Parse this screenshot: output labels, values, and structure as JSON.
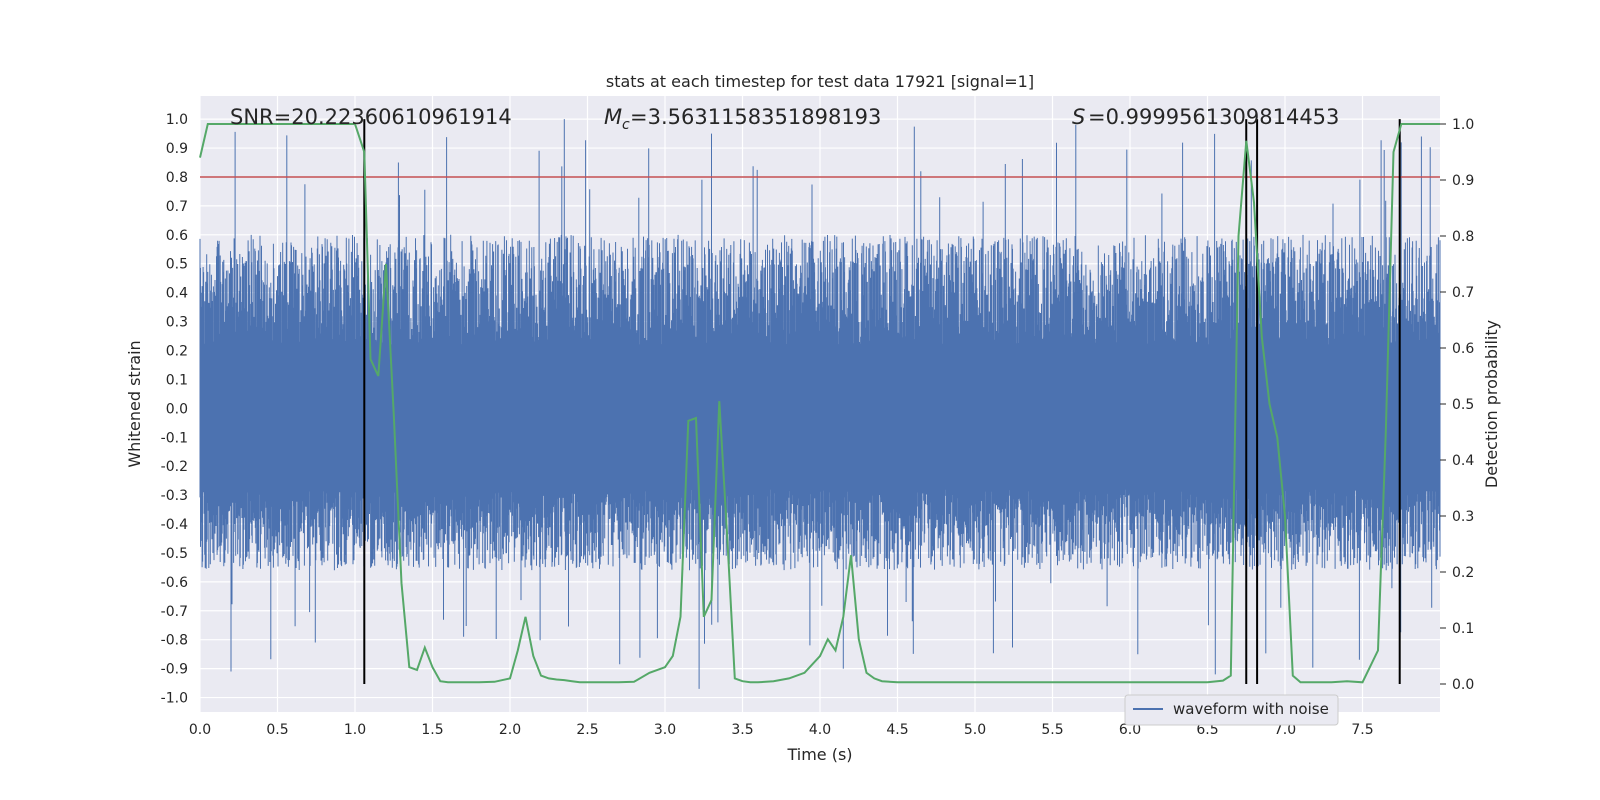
{
  "chart_data": {
    "type": "line",
    "title": "stats at each timestep for test data 17921 [signal=1]",
    "xlabel": "Time (s)",
    "ylabel_left": "Whitened strain",
    "ylabel_right": "Detection probability",
    "xlim": [
      0.0,
      8.0
    ],
    "ylim_left": [
      -1.05,
      1.08
    ],
    "ylim_right": [
      -0.05,
      1.05
    ],
    "x_ticks": [
      "0.0",
      "0.5",
      "1.0",
      "1.5",
      "2.0",
      "2.5",
      "3.0",
      "3.5",
      "4.0",
      "4.5",
      "5.0",
      "5.5",
      "6.0",
      "6.5",
      "7.0",
      "7.5"
    ],
    "y_left_ticks": [
      "1.0",
      "0.9",
      "0.8",
      "0.7",
      "0.6",
      "0.5",
      "0.4",
      "0.3",
      "0.2",
      "0.1",
      "0.0",
      "-0.1",
      "-0.2",
      "-0.3",
      "-0.4",
      "-0.5",
      "-0.6",
      "-0.7",
      "-0.8",
      "-0.9",
      "-1.0"
    ],
    "y_right_ticks": [
      "1.0",
      "0.9",
      "0.8",
      "0.7",
      "0.6",
      "0.5",
      "0.4",
      "0.3",
      "0.2",
      "0.1",
      "0.0"
    ],
    "threshold_line": {
      "y": 0.8,
      "axis": "right_equiv_0.9",
      "color": "#c44e52"
    },
    "vertical_lines": [
      1.06,
      6.75,
      6.82,
      7.74
    ],
    "annotations": {
      "snr": "SNR=20.22360610961914",
      "mc": "=3.5631158351898193",
      "mc_symbol": "M",
      "mc_sub": "c",
      "s": "=0.9999561309814453",
      "s_symbol": "S"
    },
    "legend": [
      "waveform with noise"
    ],
    "series": [
      {
        "name": "waveform with noise",
        "axis": "left",
        "color": "#4c72b0",
        "description": "noisy whitened strain spanning roughly -0.6 to 0.8 with spikes up to 1.0"
      },
      {
        "name": "detection probability",
        "axis": "right",
        "color": "#55a868",
        "x": [
          0.0,
          0.05,
          0.2,
          0.4,
          0.6,
          0.8,
          1.0,
          1.06,
          1.1,
          1.15,
          1.2,
          1.25,
          1.3,
          1.35,
          1.4,
          1.45,
          1.5,
          1.55,
          1.6,
          1.7,
          1.8,
          1.9,
          2.0,
          2.05,
          2.1,
          2.15,
          2.2,
          2.25,
          2.3,
          2.35,
          2.4,
          2.45,
          2.5,
          2.6,
          2.7,
          2.8,
          2.9,
          3.0,
          3.05,
          3.1,
          3.15,
          3.2,
          3.25,
          3.3,
          3.35,
          3.4,
          3.45,
          3.5,
          3.55,
          3.6,
          3.7,
          3.8,
          3.9,
          4.0,
          4.05,
          4.1,
          4.15,
          4.2,
          4.25,
          4.3,
          4.35,
          4.4,
          4.5,
          4.6,
          4.7,
          5.0,
          5.5,
          6.0,
          6.5,
          6.6,
          6.65,
          6.7,
          6.75,
          6.8,
          6.85,
          6.9,
          6.95,
          7.0,
          7.05,
          7.1,
          7.15,
          7.2,
          7.3,
          7.4,
          7.5,
          7.6,
          7.65,
          7.7,
          7.75,
          7.8,
          7.85,
          7.9,
          7.95,
          8.0
        ],
        "y": [
          0.94,
          1.0,
          1.0,
          1.0,
          1.0,
          1.0,
          1.0,
          0.95,
          0.58,
          0.55,
          0.75,
          0.48,
          0.18,
          0.03,
          0.025,
          0.065,
          0.03,
          0.005,
          0.003,
          0.003,
          0.003,
          0.004,
          0.01,
          0.06,
          0.12,
          0.05,
          0.015,
          0.01,
          0.008,
          0.007,
          0.005,
          0.003,
          0.003,
          0.003,
          0.003,
          0.004,
          0.02,
          0.03,
          0.05,
          0.12,
          0.47,
          0.475,
          0.12,
          0.15,
          0.505,
          0.27,
          0.01,
          0.005,
          0.003,
          0.003,
          0.005,
          0.01,
          0.02,
          0.05,
          0.08,
          0.06,
          0.12,
          0.23,
          0.08,
          0.02,
          0.01,
          0.005,
          0.003,
          0.003,
          0.003,
          0.003,
          0.003,
          0.003,
          0.003,
          0.006,
          0.015,
          0.8,
          0.97,
          0.86,
          0.62,
          0.5,
          0.44,
          0.3,
          0.015,
          0.003,
          0.003,
          0.003,
          0.003,
          0.005,
          0.003,
          0.06,
          0.45,
          0.95,
          1.0,
          1.0,
          1.0,
          1.0,
          1.0,
          1.0
        ]
      }
    ]
  }
}
